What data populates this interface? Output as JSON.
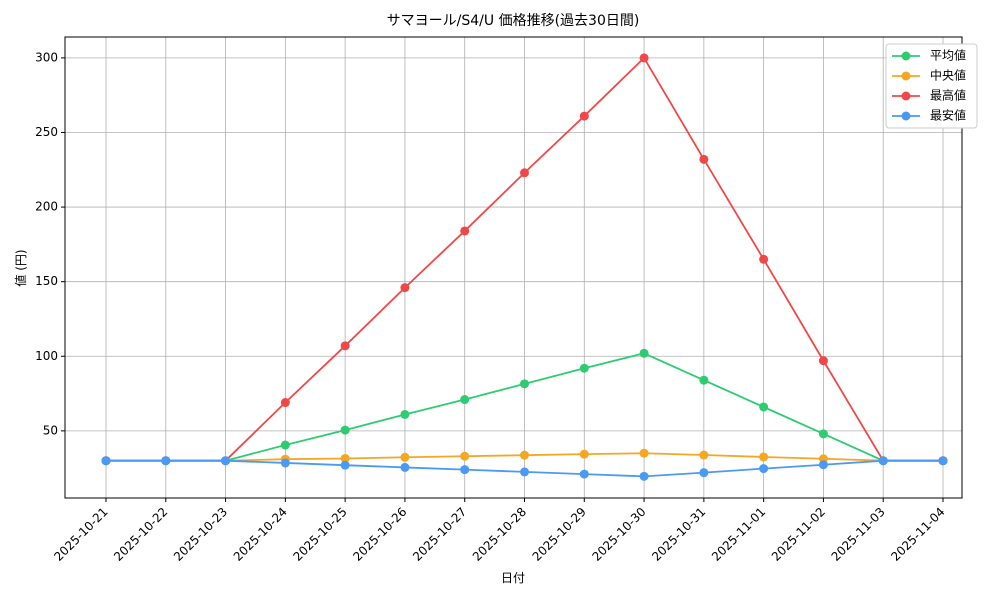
{
  "chart_data": {
    "type": "line",
    "title": "サマヨール/S4/U 価格推移(過去30日間)",
    "x_label": "日付",
    "y_label": "値 (円)",
    "categories": [
      "2025-10-21",
      "2025-10-22",
      "2025-10-23",
      "2025-10-24",
      "2025-10-25",
      "2025-10-26",
      "2025-10-27",
      "2025-10-28",
      "2025-10-29",
      "2025-10-30",
      "2025-10-31",
      "2025-11-01",
      "2025-11-02",
      "2025-11-03",
      "2025-11-04"
    ],
    "series": [
      {
        "name": "平均値",
        "color": "#2ecc71",
        "values": [
          30,
          30,
          30,
          40.5,
          50.5,
          61,
          71,
          81.5,
          92,
          102,
          84,
          66,
          48,
          30,
          30
        ]
      },
      {
        "name": "中央値",
        "color": "#f5a623",
        "values": [
          30,
          30,
          30,
          31,
          31.5,
          32.3,
          33,
          33.7,
          34.4,
          35,
          33.8,
          32.5,
          31.3,
          30,
          30
        ]
      },
      {
        "name": "最高値",
        "color": "#f04848",
        "values": [
          30,
          30,
          30,
          69,
          107,
          146,
          184,
          223,
          261,
          300,
          232,
          165,
          97,
          30,
          30
        ]
      },
      {
        "name": "最安値",
        "color": "#4a9af5",
        "values": [
          30,
          30,
          30,
          28.5,
          27,
          25.5,
          24,
          22.5,
          21,
          19.5,
          22,
          24.7,
          27.3,
          30,
          30
        ]
      }
    ],
    "ylim": [
      5,
      314
    ],
    "yticks": [
      50,
      100,
      150,
      200,
      250,
      300
    ],
    "grid": true,
    "legend": "upper right"
  }
}
